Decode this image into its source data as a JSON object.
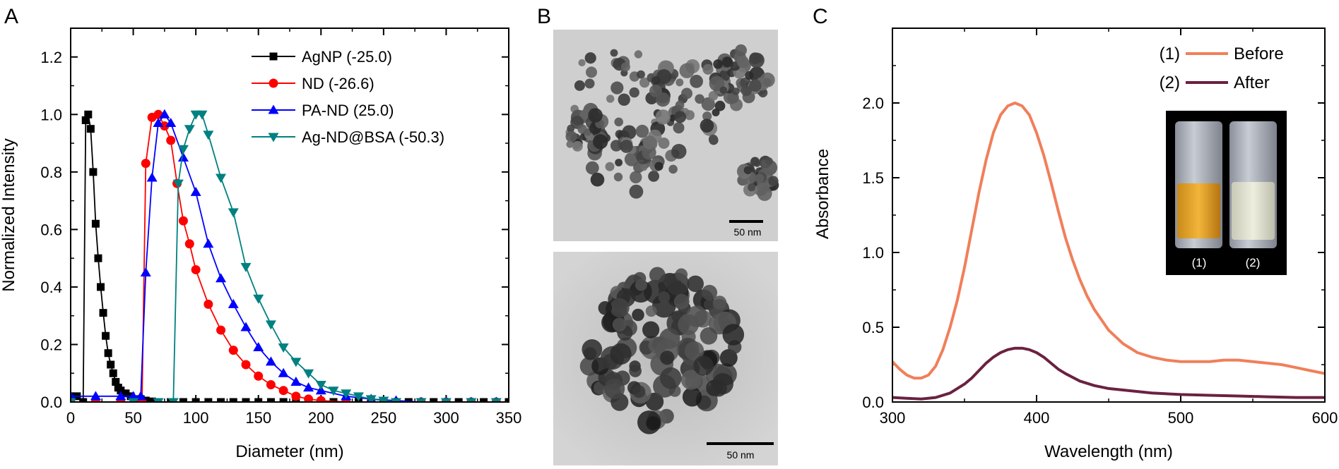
{
  "panel_labels": {
    "a": "A",
    "b": "B",
    "c": "C"
  },
  "micrographs": {
    "top_scale": "50 nm",
    "bottom_scale": "50 nm"
  },
  "inset": {
    "vial1": "(1)",
    "vial2": "(2)"
  },
  "chart_data": [
    {
      "type": "line",
      "xlabel": "Diameter (nm)",
      "ylabel": "Normalized Intensity",
      "xlim": [
        0,
        350
      ],
      "ylim": [
        0,
        1.3
      ],
      "xticks": [
        "0",
        "50",
        "100",
        "150",
        "200",
        "250",
        "300",
        "350"
      ],
      "yticks": [
        "0.0",
        "0.2",
        "0.4",
        "0.6",
        "0.8",
        "1.0",
        "1.2"
      ],
      "legend_position": "top-right",
      "series": [
        {
          "name": "AgNP (-25.0)",
          "color": "#000000",
          "marker": "square",
          "x": [
            0,
            5,
            10,
            12,
            14,
            16,
            18,
            20,
            22,
            24,
            26,
            28,
            30,
            32,
            34,
            36,
            38,
            40,
            44,
            48,
            52,
            56,
            60,
            65,
            70,
            80,
            90,
            100,
            110,
            120,
            130,
            140,
            150,
            160,
            170,
            180,
            190,
            200,
            210,
            220,
            230,
            240,
            250,
            260,
            270,
            280,
            290,
            300,
            310,
            320,
            330,
            340,
            350
          ],
          "y": [
            0.02,
            0.02,
            0.0,
            0.98,
            1.0,
            0.95,
            0.8,
            0.62,
            0.5,
            0.4,
            0.31,
            0.23,
            0.17,
            0.13,
            0.1,
            0.07,
            0.05,
            0.04,
            0.03,
            0.02,
            0.01,
            0.01,
            0.005,
            0.002,
            0.0,
            0.0,
            0.0,
            0.0,
            0.0,
            0.0,
            0.0,
            0.0,
            0.0,
            0.0,
            0.0,
            0.0,
            0.0,
            0.0,
            0.0,
            0.0,
            0.0,
            0.0,
            0.0,
            0.0,
            0.0,
            0.0,
            0.0,
            0.0,
            0.0,
            0.0,
            0.0,
            0.0,
            0.0
          ]
        },
        {
          "name": "ND (-26.6)",
          "color": "#ff0000",
          "marker": "circle",
          "x": [
            0,
            20,
            40,
            55,
            57,
            60,
            65,
            70,
            75,
            80,
            85,
            90,
            95,
            100,
            110,
            120,
            130,
            140,
            150,
            160,
            170,
            180,
            190,
            200,
            220,
            240,
            260,
            280,
            300,
            320,
            340
          ],
          "y": [
            0.0,
            0.0,
            0.0,
            0.0,
            0.0,
            0.83,
            0.99,
            1.0,
            0.96,
            0.91,
            0.76,
            0.63,
            0.55,
            0.46,
            0.34,
            0.25,
            0.18,
            0.13,
            0.09,
            0.06,
            0.04,
            0.02,
            0.01,
            0.005,
            0.0,
            0.0,
            0.0,
            0.0,
            0.0,
            0.0,
            0.0
          ]
        },
        {
          "name": "PA-ND (25.0)",
          "color": "#0000ff",
          "marker": "triangle-up",
          "x": [
            0,
            20,
            40,
            50,
            56,
            60,
            65,
            70,
            75,
            80,
            90,
            100,
            110,
            120,
            130,
            140,
            150,
            160,
            170,
            180,
            190,
            200,
            220,
            240,
            260,
            280,
            300,
            320,
            340
          ],
          "y": [
            0.02,
            0.02,
            0.02,
            0.02,
            0.02,
            0.45,
            0.78,
            0.97,
            1.0,
            0.97,
            0.85,
            0.73,
            0.55,
            0.43,
            0.34,
            0.26,
            0.19,
            0.14,
            0.1,
            0.07,
            0.05,
            0.04,
            0.02,
            0.01,
            0.005,
            0.0,
            0.0,
            0.0,
            0.0
          ]
        },
        {
          "name": "Ag-ND@BSA (-50.3)",
          "color": "#008080",
          "marker": "triangle-down",
          "x": [
            0,
            50,
            70,
            82,
            86,
            90,
            95,
            100,
            105,
            110,
            120,
            130,
            140,
            150,
            160,
            170,
            180,
            190,
            200,
            210,
            220,
            230,
            240,
            250,
            260,
            280,
            300,
            320,
            340
          ],
          "y": [
            0.0,
            0.0,
            0.0,
            0.0,
            0.76,
            0.88,
            0.95,
            1.0,
            1.0,
            0.93,
            0.78,
            0.66,
            0.47,
            0.36,
            0.27,
            0.19,
            0.14,
            0.1,
            0.06,
            0.04,
            0.03,
            0.02,
            0.01,
            0.005,
            0.0,
            0.0,
            0.0,
            0.0,
            0.0
          ]
        }
      ]
    },
    {
      "type": "line",
      "xlabel": "Wavelength (nm)",
      "ylabel": "Absorbance",
      "xlim": [
        300,
        600
      ],
      "ylim": [
        0,
        2.5
      ],
      "xticks": [
        "300",
        "400",
        "500",
        "600"
      ],
      "yticks": [
        "0.0",
        "0.5",
        "1.0",
        "1.5",
        "2.0"
      ],
      "legend_position": "top-right",
      "series": [
        {
          "name": "Before",
          "label": "(1)",
          "color": "#f07f5a",
          "x": [
            300,
            305,
            310,
            315,
            320,
            325,
            330,
            335,
            340,
            345,
            350,
            355,
            360,
            365,
            370,
            375,
            380,
            385,
            390,
            395,
            400,
            405,
            410,
            415,
            420,
            425,
            430,
            435,
            440,
            445,
            450,
            460,
            470,
            480,
            490,
            500,
            510,
            520,
            530,
            540,
            550,
            560,
            570,
            580,
            590,
            600
          ],
          "y": [
            0.27,
            0.22,
            0.18,
            0.16,
            0.16,
            0.18,
            0.24,
            0.35,
            0.5,
            0.68,
            0.9,
            1.15,
            1.4,
            1.62,
            1.8,
            1.92,
            1.98,
            2.0,
            1.98,
            1.92,
            1.8,
            1.65,
            1.47,
            1.28,
            1.1,
            0.95,
            0.82,
            0.71,
            0.62,
            0.55,
            0.48,
            0.39,
            0.33,
            0.3,
            0.28,
            0.27,
            0.27,
            0.27,
            0.28,
            0.28,
            0.27,
            0.26,
            0.25,
            0.23,
            0.21,
            0.19
          ]
        },
        {
          "name": "After",
          "label": "(2)",
          "color": "#6b2140",
          "x": [
            300,
            310,
            320,
            330,
            340,
            350,
            355,
            360,
            365,
            370,
            375,
            380,
            385,
            390,
            395,
            400,
            405,
            410,
            415,
            420,
            430,
            440,
            450,
            460,
            480,
            500,
            520,
            540,
            560,
            580,
            600
          ],
          "y": [
            0.03,
            0.025,
            0.02,
            0.03,
            0.06,
            0.12,
            0.16,
            0.21,
            0.26,
            0.3,
            0.33,
            0.35,
            0.36,
            0.36,
            0.35,
            0.33,
            0.3,
            0.26,
            0.22,
            0.19,
            0.14,
            0.11,
            0.09,
            0.08,
            0.06,
            0.05,
            0.045,
            0.04,
            0.035,
            0.03,
            0.03
          ]
        }
      ]
    }
  ]
}
